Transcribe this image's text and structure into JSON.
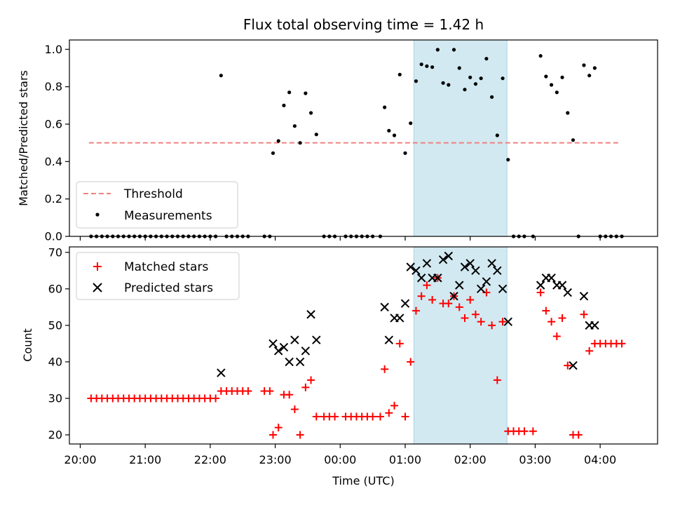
{
  "chart_data": [
    {
      "type": "scatter",
      "title": "Flux total observing time = 1.42 h",
      "xlabel": "",
      "ylabel": "Matched/Predicted stars",
      "xlim": [
        "19:50",
        "04:53"
      ],
      "ylim": [
        0,
        1.05
      ],
      "yticks": [
        "0.0",
        "0.2",
        "0.4",
        "0.6",
        "0.8",
        "1.0"
      ],
      "highlight_span": [
        "01:08",
        "02:34"
      ],
      "highlight_color": "#d2e9f1",
      "legend_position": "lower-left",
      "threshold": {
        "name": "Threshold",
        "value": 0.5,
        "x_range": [
          "20:08",
          "04:17"
        ],
        "color": "#f08080",
        "style": "dashed"
      },
      "series": [
        {
          "name": "Measurements",
          "color": "#000000",
          "marker": "dot",
          "points": [
            [
              "20:10",
              0
            ],
            [
              "20:15",
              0
            ],
            [
              "20:20",
              0
            ],
            [
              "20:25",
              0
            ],
            [
              "20:30",
              0
            ],
            [
              "20:35",
              0
            ],
            [
              "20:40",
              0
            ],
            [
              "20:45",
              0
            ],
            [
              "20:50",
              0
            ],
            [
              "20:55",
              0
            ],
            [
              "21:00",
              0
            ],
            [
              "21:05",
              0
            ],
            [
              "21:10",
              0
            ],
            [
              "21:15",
              0
            ],
            [
              "21:20",
              0
            ],
            [
              "21:25",
              0
            ],
            [
              "21:30",
              0
            ],
            [
              "21:35",
              0
            ],
            [
              "21:40",
              0
            ],
            [
              "21:45",
              0
            ],
            [
              "21:50",
              0
            ],
            [
              "21:55",
              0
            ],
            [
              "22:00",
              0
            ],
            [
              "22:05",
              0
            ],
            [
              "22:10",
              0.86
            ],
            [
              "22:15",
              0
            ],
            [
              "22:20",
              0
            ],
            [
              "22:25",
              0
            ],
            [
              "22:30",
              0
            ],
            [
              "22:35",
              0
            ],
            [
              "22:50",
              0
            ],
            [
              "22:55",
              0
            ],
            [
              "22:58",
              0.445
            ],
            [
              "23:03",
              0.51
            ],
            [
              "23:08",
              0.7
            ],
            [
              "23:13",
              0.77
            ],
            [
              "23:18",
              0.59
            ],
            [
              "23:23",
              0.5
            ],
            [
              "23:28",
              0.765
            ],
            [
              "23:33",
              0.66
            ],
            [
              "23:38",
              0.545
            ],
            [
              "23:45",
              0
            ],
            [
              "23:50",
              0
            ],
            [
              "23:55",
              0
            ],
            [
              "24:05",
              0
            ],
            [
              "24:10",
              0
            ],
            [
              "24:15",
              0
            ],
            [
              "24:20",
              0
            ],
            [
              "24:25",
              0
            ],
            [
              "24:30",
              0
            ],
            [
              "24:37",
              0
            ],
            [
              "24:41",
              0.69
            ],
            [
              "24:45",
              0.565
            ],
            [
              "24:50",
              0.54
            ],
            [
              "24:55",
              0.865
            ],
            [
              "25:00",
              0.445
            ],
            [
              "25:05",
              0.605
            ],
            [
              "25:10",
              0.83
            ],
            [
              "25:15",
              0.92
            ],
            [
              "25:20",
              0.91
            ],
            [
              "25:25",
              0.905
            ],
            [
              "25:30",
              0.998
            ],
            [
              "25:35",
              0.82
            ],
            [
              "25:40",
              0.81
            ],
            [
              "25:45",
              0.998
            ],
            [
              "25:50",
              0.9
            ],
            [
              "25:55",
              0.785
            ],
            [
              "26:00",
              0.85
            ],
            [
              "26:05",
              0.815
            ],
            [
              "26:10",
              0.845
            ],
            [
              "26:15",
              0.95
            ],
            [
              "26:20",
              0.745
            ],
            [
              "26:25",
              0.54
            ],
            [
              "26:30",
              0.845
            ],
            [
              "26:35",
              0.41
            ],
            [
              "26:40",
              0
            ],
            [
              "26:45",
              0
            ],
            [
              "26:50",
              0
            ],
            [
              "26:58",
              0
            ],
            [
              "27:05",
              0.965
            ],
            [
              "27:10",
              0.855
            ],
            [
              "27:15",
              0.81
            ],
            [
              "27:20",
              0.77
            ],
            [
              "27:25",
              0.85
            ],
            [
              "27:30",
              0.66
            ],
            [
              "27:35",
              0.515
            ],
            [
              "27:40",
              0
            ],
            [
              "27:45",
              0.915
            ],
            [
              "27:50",
              0.86
            ],
            [
              "27:55",
              0.9
            ],
            [
              "28:00",
              0
            ],
            [
              "28:05",
              0
            ],
            [
              "28:10",
              0
            ],
            [
              "28:15",
              0
            ],
            [
              "28:20",
              0
            ]
          ]
        }
      ]
    },
    {
      "type": "scatter",
      "title": "",
      "xlabel": "Time (UTC)",
      "ylabel": "Count",
      "xlim": [
        "19:50",
        "04:53"
      ],
      "ylim": [
        17.5,
        71.5
      ],
      "yticks": [
        "20",
        "30",
        "40",
        "50",
        "60",
        "70"
      ],
      "xticks": [
        "20:00",
        "21:00",
        "22:00",
        "23:00",
        "00:00",
        "01:00",
        "02:00",
        "03:00",
        "04:00"
      ],
      "highlight_span": [
        "01:08",
        "02:34"
      ],
      "legend_position": "upper-left",
      "series": [
        {
          "name": "Matched stars",
          "color": "#ff0000",
          "marker": "plus",
          "points": [
            [
              "20:10",
              30
            ],
            [
              "20:15",
              30
            ],
            [
              "20:20",
              30
            ],
            [
              "20:25",
              30
            ],
            [
              "20:30",
              30
            ],
            [
              "20:35",
              30
            ],
            [
              "20:40",
              30
            ],
            [
              "20:45",
              30
            ],
            [
              "20:50",
              30
            ],
            [
              "20:55",
              30
            ],
            [
              "21:00",
              30
            ],
            [
              "21:05",
              30
            ],
            [
              "21:10",
              30
            ],
            [
              "21:15",
              30
            ],
            [
              "21:20",
              30
            ],
            [
              "21:25",
              30
            ],
            [
              "21:30",
              30
            ],
            [
              "21:35",
              30
            ],
            [
              "21:40",
              30
            ],
            [
              "21:45",
              30
            ],
            [
              "21:50",
              30
            ],
            [
              "21:55",
              30
            ],
            [
              "22:00",
              30
            ],
            [
              "22:05",
              30
            ],
            [
              "22:10",
              32
            ],
            [
              "22:15",
              32
            ],
            [
              "22:20",
              32
            ],
            [
              "22:25",
              32
            ],
            [
              "22:30",
              32
            ],
            [
              "22:35",
              32
            ],
            [
              "22:50",
              32
            ],
            [
              "22:55",
              32
            ],
            [
              "22:58",
              20
            ],
            [
              "23:03",
              22
            ],
            [
              "23:08",
              31
            ],
            [
              "23:13",
              31
            ],
            [
              "23:18",
              27
            ],
            [
              "23:23",
              20
            ],
            [
              "23:28",
              33
            ],
            [
              "23:33",
              35
            ],
            [
              "23:38",
              25
            ],
            [
              "23:45",
              25
            ],
            [
              "23:50",
              25
            ],
            [
              "23:55",
              25
            ],
            [
              "24:05",
              25
            ],
            [
              "24:10",
              25
            ],
            [
              "24:15",
              25
            ],
            [
              "24:20",
              25
            ],
            [
              "24:25",
              25
            ],
            [
              "24:30",
              25
            ],
            [
              "24:37",
              25
            ],
            [
              "24:41",
              38
            ],
            [
              "24:45",
              26
            ],
            [
              "24:50",
              28
            ],
            [
              "24:55",
              45
            ],
            [
              "25:00",
              25
            ],
            [
              "25:05",
              40
            ],
            [
              "25:10",
              54
            ],
            [
              "25:15",
              58
            ],
            [
              "25:20",
              61
            ],
            [
              "25:25",
              57
            ],
            [
              "25:30",
              63
            ],
            [
              "25:35",
              56
            ],
            [
              "25:40",
              56
            ],
            [
              "25:45",
              58
            ],
            [
              "25:50",
              55
            ],
            [
              "25:55",
              52
            ],
            [
              "26:00",
              57
            ],
            [
              "26:05",
              53
            ],
            [
              "26:10",
              51
            ],
            [
              "26:15",
              59
            ],
            [
              "26:20",
              50
            ],
            [
              "26:25",
              35
            ],
            [
              "26:30",
              51
            ],
            [
              "26:35",
              21
            ],
            [
              "26:40",
              21
            ],
            [
              "26:45",
              21
            ],
            [
              "26:50",
              21
            ],
            [
              "26:58",
              21
            ],
            [
              "27:05",
              59
            ],
            [
              "27:10",
              54
            ],
            [
              "27:15",
              51
            ],
            [
              "27:20",
              47
            ],
            [
              "27:25",
              52
            ],
            [
              "27:30",
              39
            ],
            [
              "27:35",
              20
            ],
            [
              "27:40",
              20
            ],
            [
              "27:45",
              53
            ],
            [
              "27:50",
              43
            ],
            [
              "27:55",
              45
            ],
            [
              "28:00",
              45
            ],
            [
              "28:05",
              45
            ],
            [
              "28:10",
              45
            ],
            [
              "28:15",
              45
            ],
            [
              "28:20",
              45
            ]
          ]
        },
        {
          "name": "Predicted stars",
          "color": "#000000",
          "marker": "cross",
          "points": [
            [
              "22:10",
              37
            ],
            [
              "22:58",
              45
            ],
            [
              "23:03",
              43
            ],
            [
              "23:08",
              44
            ],
            [
              "23:13",
              40
            ],
            [
              "23:18",
              46
            ],
            [
              "23:23",
              40
            ],
            [
              "23:28",
              43
            ],
            [
              "23:33",
              53
            ],
            [
              "23:38",
              46
            ],
            [
              "24:41",
              55
            ],
            [
              "24:45",
              46
            ],
            [
              "24:50",
              52
            ],
            [
              "24:55",
              52
            ],
            [
              "25:00",
              56
            ],
            [
              "25:05",
              66
            ],
            [
              "25:10",
              65
            ],
            [
              "25:15",
              63
            ],
            [
              "25:20",
              67
            ],
            [
              "25:25",
              63
            ],
            [
              "25:30",
              63
            ],
            [
              "25:35",
              68
            ],
            [
              "25:40",
              69
            ],
            [
              "25:45",
              58
            ],
            [
              "25:50",
              61
            ],
            [
              "25:55",
              66
            ],
            [
              "26:00",
              67
            ],
            [
              "26:05",
              65
            ],
            [
              "26:10",
              60
            ],
            [
              "26:15",
              62
            ],
            [
              "26:20",
              67
            ],
            [
              "26:25",
              65
            ],
            [
              "26:30",
              60
            ],
            [
              "26:35",
              51
            ],
            [
              "27:05",
              61
            ],
            [
              "27:10",
              63
            ],
            [
              "27:15",
              63
            ],
            [
              "27:20",
              61
            ],
            [
              "27:25",
              61
            ],
            [
              "27:30",
              59
            ],
            [
              "27:35",
              39
            ],
            [
              "27:45",
              58
            ],
            [
              "27:50",
              50
            ],
            [
              "27:55",
              50
            ]
          ]
        }
      ]
    }
  ]
}
